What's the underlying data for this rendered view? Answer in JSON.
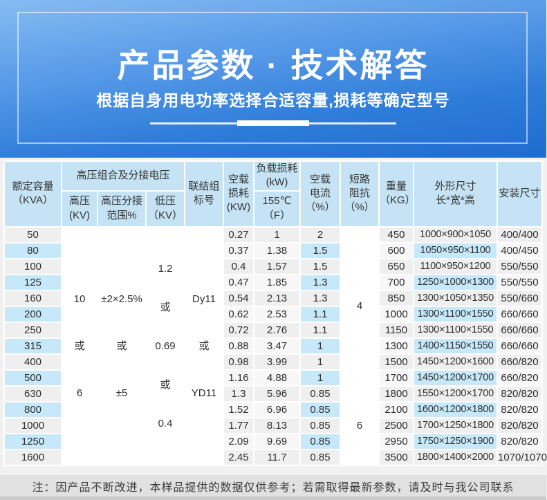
{
  "banner": {
    "title": "产品参数 · 技术解答",
    "subtitle": "根据自身用电功率选择合适容量,损耗等确定型号"
  },
  "table": {
    "header": {
      "capacity": [
        "额定容量",
        "（KVA）"
      ],
      "hv_group": [
        "高压组合及分接电压"
      ],
      "hv": [
        "高压",
        "(KV)"
      ],
      "tap": [
        "高压分接",
        "范围%"
      ],
      "lv": [
        "低压",
        "（KV）"
      ],
      "conn": [
        "联结组",
        "标号"
      ],
      "no_load_loss": [
        "空载",
        "损耗",
        "(KW)"
      ],
      "load_loss": [
        "负载损耗",
        "(kW)"
      ],
      "load_loss_sub": [
        "155℃",
        "（F）"
      ],
      "no_load_current": [
        "空载",
        "电流",
        "（%）"
      ],
      "impedance": [
        "短路",
        "阻抗",
        "（%）"
      ],
      "weight": [
        "重量",
        "（KG）"
      ],
      "dims": [
        "外形尺寸",
        "长*宽*高"
      ],
      "install": [
        "安装尺寸"
      ]
    },
    "merged": {
      "hv": [
        "10",
        "或",
        "6"
      ],
      "tap": [
        "±2×2.5%",
        "或",
        "±5"
      ],
      "lv": [
        "1.2",
        "或",
        "0.69",
        "或",
        "0.4"
      ],
      "conn": [
        "Dy11",
        "或",
        "YD11"
      ],
      "impedance": [
        {
          "value": "4",
          "rows": 10
        },
        {
          "value": "6",
          "rows": 5
        }
      ]
    },
    "rows": [
      {
        "kva": "50",
        "p0": "0.27",
        "pk": "1",
        "i0": "2",
        "w": "450",
        "dims": "1000×900×1050",
        "install": "400/400"
      },
      {
        "kva": "80",
        "p0": "0.37",
        "pk": "1.38",
        "i0": "1.5",
        "w": "600",
        "dims": "1050×950×1100",
        "install": "400/450"
      },
      {
        "kva": "100",
        "p0": "0.4",
        "pk": "1.57",
        "i0": "1.5",
        "w": "650",
        "dims": "1100×950×1200",
        "install": "550/550"
      },
      {
        "kva": "125",
        "p0": "0.47",
        "pk": "1.85",
        "i0": "1.3",
        "w": "700",
        "dims": "1250×1000×1300",
        "install": "550/550"
      },
      {
        "kva": "160",
        "p0": "0.54",
        "pk": "2.13",
        "i0": "1.3",
        "w": "850",
        "dims": "1300×1050×1350",
        "install": "550/660"
      },
      {
        "kva": "200",
        "p0": "0.62",
        "pk": "2.53",
        "i0": "1.1",
        "w": "1000",
        "dims": "1300×1100×1550",
        "install": "660/660"
      },
      {
        "kva": "250",
        "p0": "0.72",
        "pk": "2.76",
        "i0": "1.1",
        "w": "1150",
        "dims": "1300×1100×1550",
        "install": "660/660"
      },
      {
        "kva": "315",
        "p0": "0.88",
        "pk": "3.47",
        "i0": "1",
        "w": "1300",
        "dims": "1400×1150×1550",
        "install": "660/660"
      },
      {
        "kva": "400",
        "p0": "0.98",
        "pk": "3.99",
        "i0": "1",
        "w": "1500",
        "dims": "1450×1200×1600",
        "install": "660/820"
      },
      {
        "kva": "500",
        "p0": "1.16",
        "pk": "4.88",
        "i0": "1",
        "w": "1700",
        "dims": "1450×1200×1700",
        "install": "660/820"
      },
      {
        "kva": "630",
        "p0": "1.3",
        "pk": "5.96",
        "i0": "0.85",
        "w": "1800",
        "dims": "1550×1200×1700",
        "install": "820/820"
      },
      {
        "kva": "800",
        "p0": "1.52",
        "pk": "6.96",
        "i0": "0.85",
        "w": "2100",
        "dims": "1600×1200×1800",
        "install": "820/820"
      },
      {
        "kva": "1000",
        "p0": "1.77",
        "pk": "8.13",
        "i0": "0.85",
        "w": "2500",
        "dims": "1700×1250×1800",
        "install": "820/820"
      },
      {
        "kva": "1250",
        "p0": "2.09",
        "pk": "9.69",
        "i0": "0.85",
        "w": "2950",
        "dims": "1750×1250×1900",
        "install": "820/820"
      },
      {
        "kva": "1600",
        "p0": "2.45",
        "pk": "11.7",
        "i0": "0.85",
        "w": "3500",
        "dims": "1800×1400×2000",
        "install": "1070/1070"
      }
    ]
  },
  "note": {
    "text": "注：因产品不断改进，本样品提供的数据仅供参考；若需取得最新参数，请及时与我公司联系"
  },
  "colors": {
    "banner_top": "#85bcf2",
    "banner_bottom": "#1f6cd0",
    "header_cell_blue": "#c5e3f4",
    "row_highlight_blue": "#c6e8f9",
    "row_gray": "#efefef",
    "page_bg": "#f1f1f1",
    "note_bg": "#e1e1e1"
  }
}
